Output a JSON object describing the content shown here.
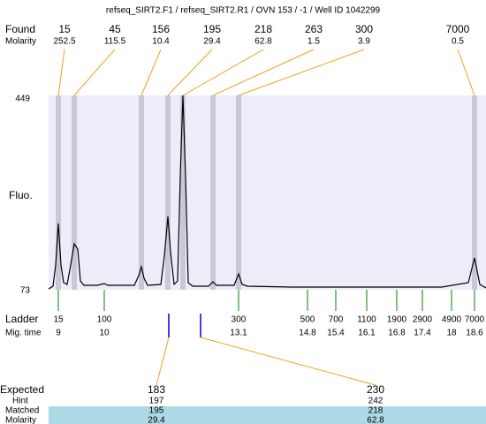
{
  "header": {
    "title": "refseq_SIRT2.F1 / refseq_SIRT2.R1 / OVN 153 / -1 / Well ID 1042299"
  },
  "found": {
    "label": "Found",
    "molarity_label": "Molarity",
    "sizes": [
      15,
      45,
      156,
      195,
      218,
      263,
      300,
      7000
    ],
    "molarity": [
      252.5,
      115.5,
      10.4,
      29.4,
      62.8,
      1.5,
      3.9,
      0.5
    ]
  },
  "y_axis": {
    "label": "Fluo.",
    "top": 449,
    "bottom": 73
  },
  "ladder": {
    "label": "Ladder",
    "mig_label": "Mig. time",
    "sizes": [
      15,
      100,
      300,
      500,
      700,
      1100,
      1900,
      2900,
      4900,
      7000
    ],
    "mig_times": [
      9,
      10,
      13.1,
      14.8,
      15.4,
      16.1,
      16.8,
      17.4,
      18,
      18.6
    ]
  },
  "expected": {
    "labels": [
      "Expected",
      "Hint",
      "Matched",
      "Molarity"
    ],
    "columns": [
      {
        "expected": 183,
        "hint": 197,
        "matched": 195,
        "molarity": 29.4
      },
      {
        "expected": 230,
        "hint": 242,
        "matched": 218,
        "molarity": 62.8
      }
    ]
  }
}
